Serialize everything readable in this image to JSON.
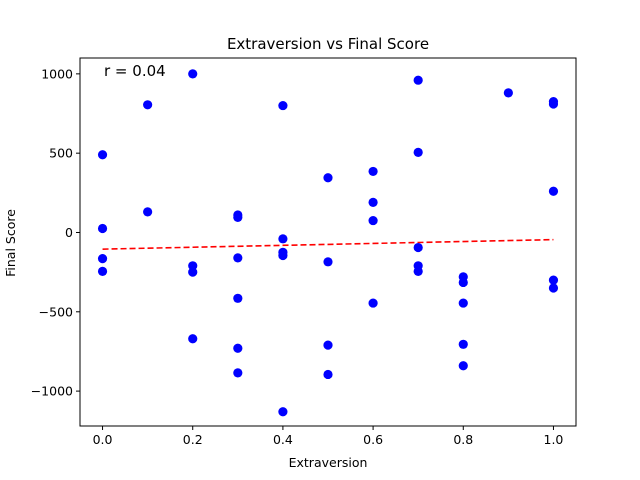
{
  "chart_data": {
    "type": "scatter",
    "title": "Extraversion vs Final Score",
    "xlabel": "Extraversion",
    "ylabel": "Final Score",
    "xlim": [
      -0.05,
      1.05
    ],
    "ylim": [
      -1220,
      1100
    ],
    "xticks": [
      0.0,
      0.2,
      0.4,
      0.6,
      0.8,
      1.0
    ],
    "xtick_labels": [
      "0.0",
      "0.2",
      "0.4",
      "0.6",
      "0.8",
      "1.0"
    ],
    "yticks": [
      -1000,
      -500,
      0,
      500,
      1000
    ],
    "ytick_labels": [
      "−1000",
      "−500",
      "0",
      "500",
      "1000"
    ],
    "grid": false,
    "point_color": "#0000ff",
    "trend_color": "#ff0000",
    "annotation": "r = 0.04",
    "points": [
      {
        "x": 0.0,
        "y": 490
      },
      {
        "x": 0.0,
        "y": 25
      },
      {
        "x": 0.0,
        "y": -165
      },
      {
        "x": 0.0,
        "y": -245
      },
      {
        "x": 0.1,
        "y": 805
      },
      {
        "x": 0.1,
        "y": 130
      },
      {
        "x": 0.2,
        "y": 1000
      },
      {
        "x": 0.2,
        "y": -210
      },
      {
        "x": 0.2,
        "y": -250
      },
      {
        "x": 0.2,
        "y": -670
      },
      {
        "x": 0.3,
        "y": 110
      },
      {
        "x": 0.3,
        "y": 95
      },
      {
        "x": 0.3,
        "y": -160
      },
      {
        "x": 0.3,
        "y": -415
      },
      {
        "x": 0.3,
        "y": -730
      },
      {
        "x": 0.3,
        "y": -885
      },
      {
        "x": 0.4,
        "y": 800
      },
      {
        "x": 0.4,
        "y": -40
      },
      {
        "x": 0.4,
        "y": -125
      },
      {
        "x": 0.4,
        "y": -145
      },
      {
        "x": 0.4,
        "y": -1130
      },
      {
        "x": 0.5,
        "y": 345
      },
      {
        "x": 0.5,
        "y": -185
      },
      {
        "x": 0.5,
        "y": -710
      },
      {
        "x": 0.5,
        "y": -895
      },
      {
        "x": 0.6,
        "y": 385
      },
      {
        "x": 0.6,
        "y": 190
      },
      {
        "x": 0.6,
        "y": 75
      },
      {
        "x": 0.6,
        "y": -445
      },
      {
        "x": 0.7,
        "y": 960
      },
      {
        "x": 0.7,
        "y": 505
      },
      {
        "x": 0.7,
        "y": -95
      },
      {
        "x": 0.7,
        "y": -210
      },
      {
        "x": 0.7,
        "y": -245
      },
      {
        "x": 0.8,
        "y": -280
      },
      {
        "x": 0.8,
        "y": -315
      },
      {
        "x": 0.8,
        "y": -445
      },
      {
        "x": 0.8,
        "y": -705
      },
      {
        "x": 0.8,
        "y": -840
      },
      {
        "x": 0.9,
        "y": 880
      },
      {
        "x": 1.0,
        "y": 825
      },
      {
        "x": 1.0,
        "y": 810
      },
      {
        "x": 1.0,
        "y": 260
      },
      {
        "x": 1.0,
        "y": -300
      },
      {
        "x": 1.0,
        "y": -350
      }
    ],
    "trend_line": {
      "x": [
        0.0,
        1.0
      ],
      "y": [
        -105,
        -45
      ]
    }
  }
}
